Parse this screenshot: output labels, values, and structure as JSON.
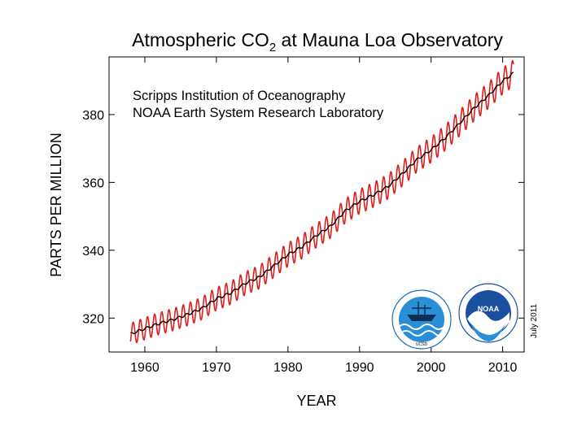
{
  "chart_data": {
    "type": "line",
    "title": {
      "prefix": "Atmospheric CO",
      "subscript": "2",
      "suffix": " at Mauna Loa Observatory"
    },
    "credits": [
      "Scripps Institution of Oceanography",
      "NOAA Earth System Research Laboratory"
    ],
    "xlabel": "YEAR",
    "ylabel": "PARTS PER MILLION",
    "date_note": "July 2011",
    "xlim": [
      1955,
      2013
    ],
    "ylim": [
      310,
      397
    ],
    "x_ticks": [
      1960,
      1970,
      1980,
      1990,
      2000,
      2010
    ],
    "y_ticks": [
      320,
      340,
      360,
      380
    ],
    "grid": false,
    "series": [
      {
        "color": "#dd1f1f",
        "kind": "monthly",
        "seasonal_amplitude": 3.2
      },
      {
        "color": "#000000",
        "kind": "annual-trend",
        "x": [
          1958,
          1960,
          1962,
          1964,
          1966,
          1968,
          1970,
          1972,
          1974,
          1976,
          1978,
          1980,
          1982,
          1984,
          1986,
          1988,
          1990,
          1992,
          1994,
          1996,
          1998,
          2000,
          2002,
          2004,
          2006,
          2008,
          2010,
          2011.5
        ],
        "values": [
          315.3,
          316.9,
          318.4,
          319.6,
          321.1,
          322.9,
          325.7,
          327.4,
          330.2,
          332.1,
          335.4,
          338.7,
          341.1,
          344.4,
          347.2,
          351.6,
          354.4,
          356.4,
          358.8,
          362.6,
          366.7,
          369.6,
          373.2,
          377.5,
          381.9,
          385.6,
          389.9,
          392.2
        ]
      }
    ],
    "logos": [
      {
        "icon": "scripps-ucsd-logo",
        "caption": "UCSD"
      },
      {
        "icon": "noaa-logo",
        "caption": "NOAA"
      }
    ]
  }
}
